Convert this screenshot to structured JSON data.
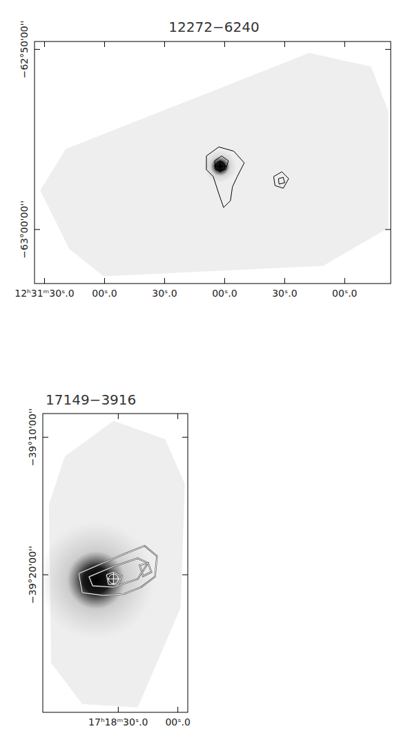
{
  "chart_data": [
    {
      "type": "contour",
      "title": "12272−6240",
      "color": "#000000",
      "xlim": [
        1895,
        1717
      ],
      "ylim": [
        -63.05,
        -62.826
      ],
      "xticks": [
        {
          "value": 1890,
          "label": "12ʰ31ᵐ30ˢ.0"
        },
        {
          "value": 1860,
          "label": "00ˢ.0"
        },
        {
          "value": 1830,
          "label": "30ˢ.0"
        },
        {
          "value": 1800,
          "label": "00ˢ.0"
        },
        {
          "value": 1770,
          "label": "30ˢ.0"
        },
        {
          "value": 1740,
          "label": "00ˢ.0"
        }
      ],
      "yticks": [
        {
          "value": -62.8333,
          "label": "−62°50'00''"
        },
        {
          "value": -63.0,
          "label": "−63°00'00''"
        }
      ],
      "coverage": {
        "x": [
          1892.1,
          1879.4,
          1757.7,
          1726.8,
          1718.2,
          1718.2,
          1750.8,
          1860.5,
          1877.7
        ],
        "y": [
          -62.9637,
          -62.9255,
          -62.8365,
          -62.8492,
          -62.8906,
          -62.9987,
          -63.0337,
          -63.0433,
          -63.0178
        ]
      },
      "emission": {
        "x": 1802.2,
        "y": -62.9415
      },
      "source": {
        "x": 1802.2,
        "y": -62.9415
      },
      "contours": [
        {
          "x": [
            1809.1,
            1802.9,
            1795.4,
            1790.2,
            1793.7,
            1796.1,
            1797.1,
            1800.5,
            1802.9,
            1805.7,
            1809.1
          ],
          "y": [
            -62.9319,
            -62.9236,
            -62.9275,
            -62.9383,
            -62.951,
            -62.9606,
            -62.9733,
            -62.9796,
            -62.9669,
            -62.951,
            -62.9446
          ]
        },
        {
          "x": [
            1805.0,
            1801.5,
            1798.1,
            1799.5,
            1804.6
          ],
          "y": [
            -62.9364,
            -62.9319,
            -62.9364,
            -62.9446,
            -62.9446
          ]
        },
        {
          "x": [
            1775.5,
            1771.4,
            1768.0,
            1770.7,
            1774.8
          ],
          "y": [
            -62.951,
            -62.9466,
            -62.9529,
            -62.9618,
            -62.9593
          ]
        },
        {
          "x": [
            1773.1,
            1770.7,
            1770.0,
            1772.8
          ],
          "y": [
            -62.9529,
            -62.9517,
            -62.9567,
            -62.958
          ]
        }
      ]
    },
    {
      "type": "contour",
      "title": "17149−3916",
      "color": "#ffffff",
      "xlim": [
        1148,
        1075
      ],
      "ylim": [
        -39.5,
        -39.138
      ],
      "xticks": [
        {
          "value": 1110,
          "label": "17ʰ18ᵐ30ˢ.0"
        },
        {
          "value": 1080,
          "label": "00ˢ.0"
        }
      ],
      "yticks": [
        {
          "value": -39.1667,
          "label": "−39°10'00''"
        },
        {
          "value": -39.3333,
          "label": "−39°20'00''"
        }
      ],
      "coverage": {
        "x": [
          1144.9,
          1136.9,
          1112.4,
          1086.3,
          1076.5,
          1078.6,
          1100.2,
          1128.1,
          1143.8
        ],
        "y": [
          -39.2483,
          -39.19,
          -39.1467,
          -39.1692,
          -39.2233,
          -39.3733,
          -39.4942,
          -39.49,
          -39.44
        ]
      },
      "emission": {
        "x": 1121.2,
        "y": -39.34
      },
      "source": {
        "x": 1112.4,
        "y": -39.3383
      },
      "contours": [
        {
          "x": [
            1129.9,
            1117.7,
            1105.5,
            1096.7,
            1090.5,
            1091.5,
            1098.5,
            1107.2,
            1117.7,
            1128.1
          ],
          "y": [
            -39.3317,
            -39.3192,
            -39.3067,
            -39.2983,
            -39.3108,
            -39.3358,
            -39.3483,
            -39.3567,
            -39.3583,
            -39.355
          ]
        },
        {
          "x": [
            1124.7,
            1112.4,
            1100.2,
            1095.0,
            1100.2,
            1112.4,
            1122.9
          ],
          "y": [
            -39.3358,
            -39.3233,
            -39.3133,
            -39.3192,
            -39.3383,
            -39.3483,
            -39.3467
          ]
        },
        {
          "x": [
            1115.9,
            1112.4,
            1108.3,
            1110.0,
            1114.9
          ],
          "y": [
            -39.3333,
            -39.33,
            -39.335,
            -39.345,
            -39.345
          ]
        },
        {
          "x": [
            1099.2,
            1095.0,
            1093.3,
            1097.5
          ],
          "y": [
            -39.3217,
            -39.3192,
            -39.33,
            -39.335
          ]
        }
      ]
    }
  ]
}
